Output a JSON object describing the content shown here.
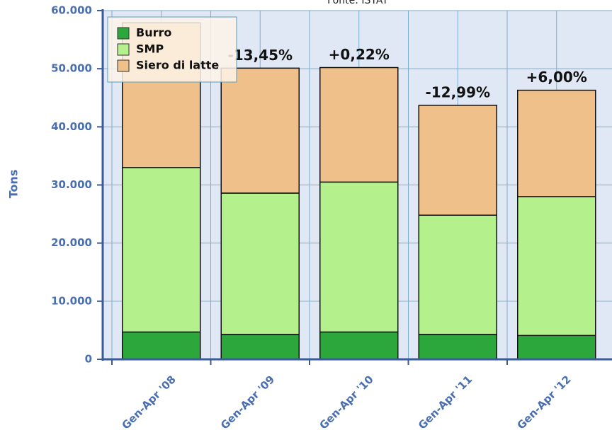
{
  "chart_data": {
    "type": "stacked_bar",
    "subtitle": "Fonte: ISTAT",
    "y_label": "Tons",
    "categories": [
      "Gen-Apr '08",
      "Gen-Apr '09",
      "Gen-Apr '10",
      "Gen-Apr '11",
      "Gen-Apr '12"
    ],
    "series": [
      {
        "name": "Burro",
        "color": "#2ca73c",
        "values": [
          4700,
          4300,
          4700,
          4300,
          4100
        ]
      },
      {
        "name": "SMP",
        "color": "#b4f08c",
        "values": [
          28300,
          24300,
          25800,
          20500,
          23900
        ]
      },
      {
        "name": "Siero di latte",
        "color": "#f0c08a",
        "values": [
          24900,
          21500,
          19700,
          18900,
          18300
        ]
      }
    ],
    "annotations": [
      "-13,45%",
      "+0,22%",
      "-12,99%",
      "+6,00%"
    ],
    "ylim": [
      0,
      60000
    ],
    "yticks": [
      {
        "value": 0,
        "label": "0"
      },
      {
        "value": 10000,
        "label": "10.000"
      },
      {
        "value": 20000,
        "label": "20.000"
      },
      {
        "value": 30000,
        "label": "30.000"
      },
      {
        "value": 40000,
        "label": "40.000"
      },
      {
        "value": 50000,
        "label": "50.000"
      },
      {
        "value": 60000,
        "label": "60.000"
      }
    ],
    "grid": true,
    "legend": "top-left"
  }
}
